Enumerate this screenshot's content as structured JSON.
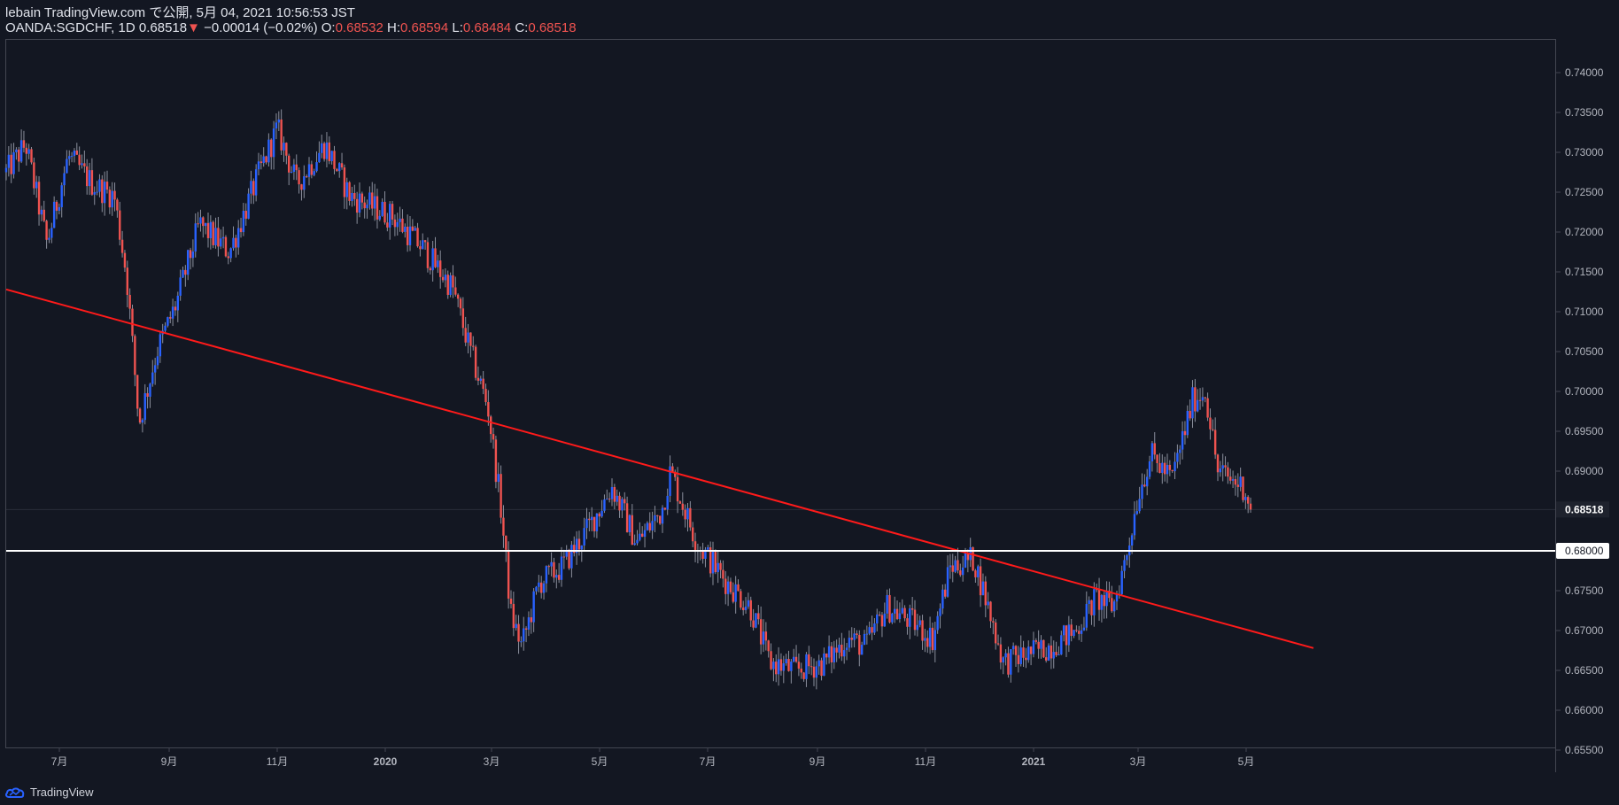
{
  "header": {
    "publish_line": "lebain TradingView.com で公開, 5月 04, 2021 10:56:53 JST",
    "symbol": "OANDA:SGDCHF, 1D",
    "last": "0.68518",
    "down_arrow": "▼",
    "change": "−0.00014 (−0.02%)",
    "o_label": "O:",
    "o": "0.68532",
    "h_label": "H:",
    "h": "0.68594",
    "l_label": "L:",
    "l": "0.68484",
    "c_label": "C:",
    "c": "0.68518"
  },
  "footer": {
    "brand": "TradingView"
  },
  "chart_data": {
    "type": "candlestick",
    "symbol": "OANDA:SGDCHF",
    "interval": "1D",
    "ylim": [
      0.653,
      0.7445
    ],
    "y_ticks": [
      "0.74000",
      "0.73500",
      "0.73000",
      "0.72500",
      "0.72000",
      "0.71500",
      "0.71000",
      "0.70500",
      "0.70000",
      "0.69500",
      "0.69000",
      "0.68500",
      "0.68000",
      "0.67500",
      "0.67000",
      "0.66500",
      "0.66000",
      "0.65500"
    ],
    "x_ticks": [
      {
        "label": "7月",
        "bold": false
      },
      {
        "label": "9月",
        "bold": false
      },
      {
        "label": "11月",
        "bold": false
      },
      {
        "label": "2020",
        "bold": true
      },
      {
        "label": "3月",
        "bold": false
      },
      {
        "label": "5月",
        "bold": false
      },
      {
        "label": "7月",
        "bold": false
      },
      {
        "label": "9月",
        "bold": false
      },
      {
        "label": "11月",
        "bold": false
      },
      {
        "label": "2021",
        "bold": true
      },
      {
        "label": "3月",
        "bold": false
      },
      {
        "label": "5月",
        "bold": false
      }
    ],
    "last_price": "0.68518",
    "horizontal_line": {
      "price": 0.68,
      "label": "0.68000",
      "color": "#ffffff"
    },
    "trend_line": {
      "color": "#ff1a1a",
      "start": {
        "date": "2019-06-01",
        "price": 0.7128
      },
      "end": {
        "date": "2021-06-08",
        "price": 0.6678
      }
    },
    "colors": {
      "up": "#2962ff",
      "down": "#ef5350",
      "background": "#131722",
      "axis_text": "#b2b5be"
    },
    "series_path": [
      [
        "2019-06-01",
        0.7275
      ],
      [
        "2019-06-12",
        0.731
      ],
      [
        "2019-06-24",
        0.7185
      ],
      [
        "2019-07-06",
        0.7295
      ],
      [
        "2019-07-20",
        0.726
      ],
      [
        "2019-08-01",
        0.7245
      ],
      [
        "2019-08-08",
        0.7145
      ],
      [
        "2019-08-15",
        0.696
      ],
      [
        "2019-08-25",
        0.705
      ],
      [
        "2019-09-05",
        0.711
      ],
      [
        "2019-09-18",
        0.721
      ],
      [
        "2019-10-05",
        0.7175
      ],
      [
        "2019-10-22",
        0.7275
      ],
      [
        "2019-11-01",
        0.733
      ],
      [
        "2019-11-12",
        0.726
      ],
      [
        "2019-11-28",
        0.731
      ],
      [
        "2019-12-12",
        0.7245
      ],
      [
        "2020-01-05",
        0.722
      ],
      [
        "2020-01-22",
        0.718
      ],
      [
        "2020-02-08",
        0.713
      ],
      [
        "2020-02-18",
        0.705
      ],
      [
        "2020-02-28",
        0.698
      ],
      [
        "2020-03-06",
        0.686
      ],
      [
        "2020-03-12",
        0.672
      ],
      [
        "2020-03-18",
        0.668
      ],
      [
        "2020-03-28",
        0.676
      ],
      [
        "2020-04-10",
        0.678
      ],
      [
        "2020-04-25",
        0.683
      ],
      [
        "2020-05-08",
        0.688
      ],
      [
        "2020-05-22",
        0.681
      ],
      [
        "2020-06-05",
        0.685
      ],
      [
        "2020-06-10",
        0.69
      ],
      [
        "2020-06-25",
        0.681
      ],
      [
        "2020-07-12",
        0.676
      ],
      [
        "2020-07-25",
        0.673
      ],
      [
        "2020-08-05",
        0.666
      ],
      [
        "2020-08-20",
        0.665
      ],
      [
        "2020-09-05",
        0.666
      ],
      [
        "2020-09-18",
        0.669
      ],
      [
        "2020-09-28",
        0.668
      ],
      [
        "2020-10-10",
        0.673
      ],
      [
        "2020-10-25",
        0.671
      ],
      [
        "2020-11-05",
        0.669
      ],
      [
        "2020-11-15",
        0.678
      ],
      [
        "2020-11-28",
        0.679
      ],
      [
        "2020-12-05",
        0.674
      ],
      [
        "2020-12-15",
        0.666
      ],
      [
        "2020-12-28",
        0.667
      ],
      [
        "2021-01-10",
        0.668
      ],
      [
        "2021-01-25",
        0.67
      ],
      [
        "2021-02-05",
        0.674
      ],
      [
        "2021-02-15",
        0.673
      ],
      [
        "2021-02-22",
        0.679
      ],
      [
        "2021-03-01",
        0.687
      ],
      [
        "2021-03-08",
        0.692
      ],
      [
        "2021-03-20",
        0.689
      ],
      [
        "2021-04-01",
        0.699
      ],
      [
        "2021-04-08",
        0.7
      ],
      [
        "2021-04-15",
        0.69
      ],
      [
        "2021-04-22",
        0.689
      ],
      [
        "2021-04-30",
        0.688
      ],
      [
        "2021-05-04",
        0.68518
      ]
    ]
  }
}
